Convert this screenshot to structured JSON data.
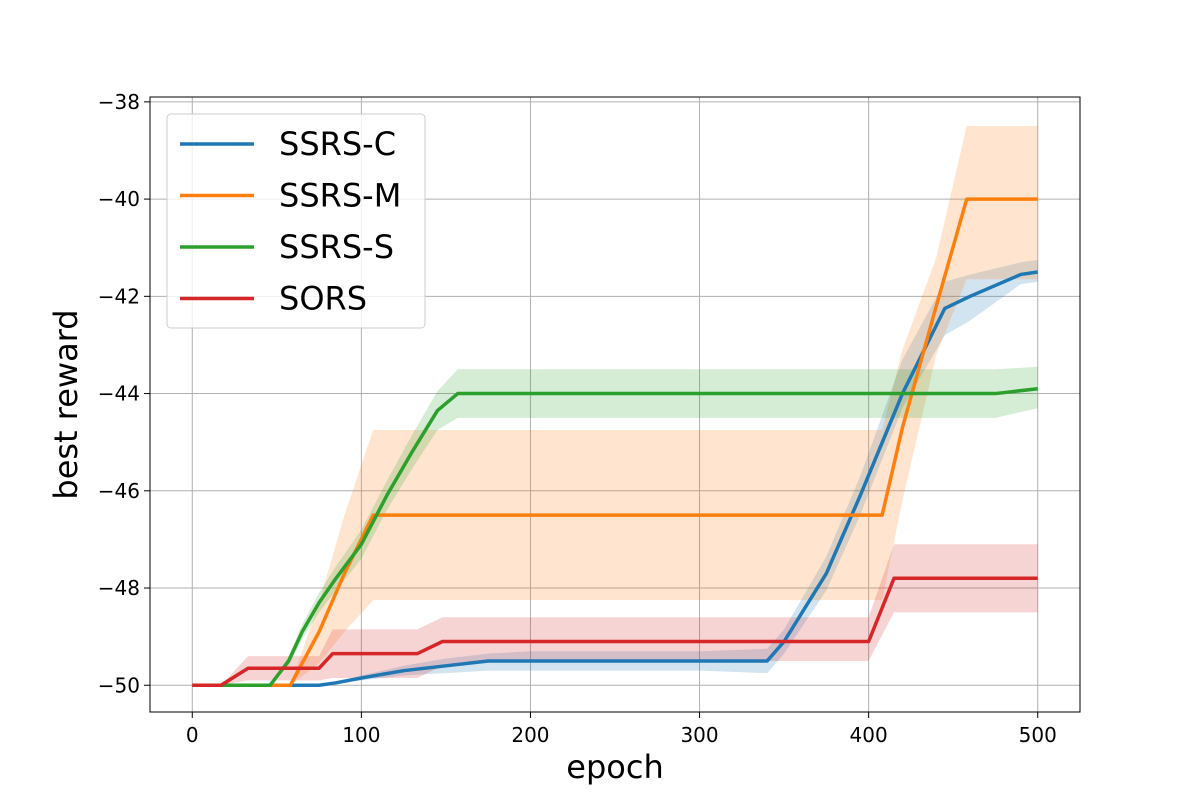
{
  "chart_data": {
    "type": "line",
    "title": "",
    "xlabel": "epoch",
    "ylabel": "best reward",
    "xlim": [
      -25,
      525
    ],
    "ylim": [
      -50.55,
      -37.9
    ],
    "xticks": [
      0,
      100,
      200,
      300,
      400,
      500
    ],
    "yticks": [
      -50,
      -48,
      -46,
      -44,
      -42,
      -40,
      -38
    ],
    "xtick_labels": [
      "0",
      "100",
      "200",
      "300",
      "400",
      "500"
    ],
    "ytick_labels": [
      "−50",
      "−48",
      "−46",
      "−44",
      "−42",
      "−40",
      "−38"
    ],
    "grid": true,
    "legend_position": "top-left",
    "series": [
      {
        "name": "SSRS-C",
        "color": "#1f77b4",
        "x": [
          0,
          75,
          85,
          100,
          125,
          150,
          175,
          200,
          300,
          340,
          350,
          375,
          395,
          420,
          445,
          460,
          490,
          500
        ],
        "y": [
          -50,
          -50,
          -49.95,
          -49.85,
          -49.7,
          -49.6,
          -49.5,
          -49.5,
          -49.5,
          -49.5,
          -49.1,
          -47.7,
          -46.1,
          -44,
          -42.25,
          -42,
          -41.55,
          -41.5
        ],
        "lower": [
          -50,
          -50,
          -49.95,
          -49.9,
          -49.8,
          -49.75,
          -49.7,
          -49.7,
          -49.7,
          -49.75,
          -49.35,
          -48.05,
          -46.5,
          -44.3,
          -42.8,
          -42.5,
          -41.75,
          -41.7
        ],
        "upper": [
          -50,
          -50,
          -49.95,
          -49.8,
          -49.6,
          -49.45,
          -49.35,
          -49.3,
          -49.3,
          -49.25,
          -48.85,
          -47.35,
          -45.7,
          -43.3,
          -41.7,
          -41.55,
          -41.3,
          -41.25
        ]
      },
      {
        "name": "SSRS-M",
        "color": "#ff7f0e",
        "x": [
          0,
          58,
          75,
          90,
          107,
          300,
          408,
          420,
          440,
          458,
          500
        ],
        "y": [
          -50,
          -50,
          -48.9,
          -47.7,
          -46.5,
          -46.5,
          -46.5,
          -44.7,
          -42.2,
          -40,
          -40
        ],
        "lower": [
          -50,
          -50,
          -49.55,
          -48.9,
          -48.25,
          -48.25,
          -48.25,
          -46.2,
          -43.2,
          -41.65,
          -41.65
        ],
        "upper": [
          -50,
          -50,
          -48.3,
          -46.5,
          -44.75,
          -44.75,
          -44.75,
          -43.1,
          -41.2,
          -38.5,
          -38.5
        ]
      },
      {
        "name": "SSRS-S",
        "color": "#2ca02c",
        "x": [
          0,
          46,
          57,
          65,
          75,
          85,
          100,
          115,
          130,
          145,
          157,
          200,
          300,
          400,
          475,
          500
        ],
        "y": [
          -50,
          -50,
          -49.5,
          -48.9,
          -48.3,
          -47.8,
          -47.1,
          -46.1,
          -45.2,
          -44.35,
          -44,
          -44,
          -44,
          -44,
          -44,
          -43.9
        ],
        "lower": [
          -50,
          -50,
          -49.6,
          -49.05,
          -48.5,
          -48.05,
          -47.4,
          -46.4,
          -45.55,
          -44.75,
          -44.5,
          -44.5,
          -44.5,
          -44.5,
          -44.5,
          -44.3
        ],
        "upper": [
          -50,
          -50,
          -49.4,
          -48.75,
          -48.1,
          -47.55,
          -46.8,
          -45.8,
          -44.85,
          -43.95,
          -43.5,
          -43.5,
          -43.5,
          -43.5,
          -43.5,
          -43.45
        ]
      },
      {
        "name": "SORS",
        "color": "#d62728",
        "x": [
          0,
          17,
          33,
          75,
          83,
          133,
          148,
          167,
          300,
          400,
          415,
          500
        ],
        "y": [
          -50,
          -50,
          -49.65,
          -49.65,
          -49.35,
          -49.35,
          -49.1,
          -49.1,
          -49.1,
          -49.1,
          -47.8,
          -47.8
        ],
        "lower": [
          -50,
          -50,
          -49.9,
          -49.9,
          -49.85,
          -49.85,
          -49.6,
          -49.5,
          -49.5,
          -49.5,
          -48.5,
          -48.5
        ],
        "upper": [
          -50,
          -50,
          -49.4,
          -49.4,
          -48.85,
          -48.85,
          -48.6,
          -48.6,
          -48.6,
          -48.6,
          -47.1,
          -47.1
        ]
      }
    ]
  }
}
